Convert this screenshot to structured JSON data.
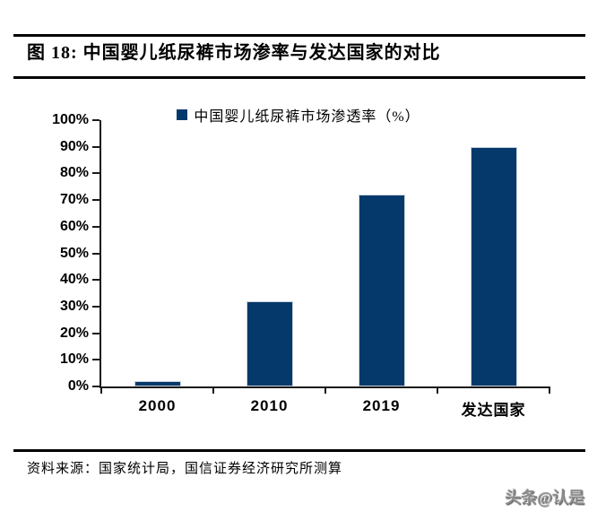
{
  "figure": {
    "title": "图 18: 中国婴儿纸尿裤市场渗率与发达国家的对比"
  },
  "chart_data": {
    "type": "bar",
    "title": "中国婴儿纸尿裤市场渗透率（%）",
    "legend": [
      "中国婴儿纸尿裤市场渗透率（%）"
    ],
    "legend_position": "top-center",
    "categories": [
      "2000",
      "2010",
      "2019",
      "发达国家"
    ],
    "values": [
      2,
      32,
      72,
      90
    ],
    "xlabel": "",
    "ylabel": "",
    "ylim": [
      0,
      100
    ],
    "yticks": [
      "0%",
      "10%",
      "20%",
      "30%",
      "40%",
      "50%",
      "60%",
      "70%",
      "80%",
      "90%",
      "100%"
    ],
    "grid": false,
    "bar_color": "#05396B"
  },
  "colors": {
    "bar": "#05396B",
    "rule": "#000000",
    "axis": "#1a1a1a"
  },
  "source": {
    "text": "资料来源：国家统计局，国信证券经济研究所测算"
  },
  "watermark": {
    "text": "头条@认是"
  }
}
